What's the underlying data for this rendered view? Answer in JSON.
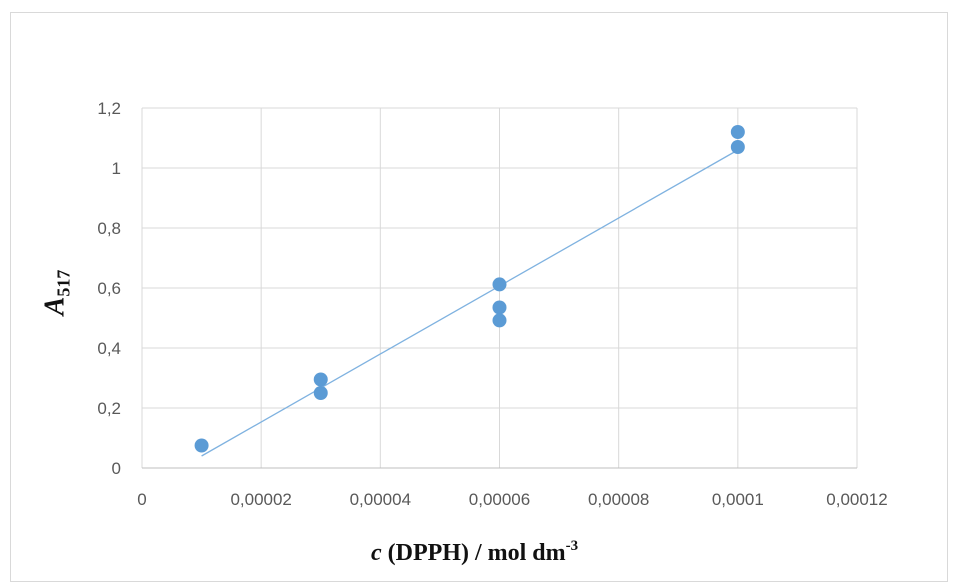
{
  "chart_data": {
    "type": "scatter",
    "title": "",
    "xlabel": {
      "var": "c",
      "rest": " (DPPH) / mol dm",
      "sup": "-3"
    },
    "ylabel": {
      "var": "A",
      "sub": "517"
    },
    "xlim": [
      0,
      0.00012
    ],
    "ylim": [
      0,
      1.2
    ],
    "x_ticks": [
      0,
      2e-05,
      4e-05,
      6e-05,
      8e-05,
      0.0001,
      0.00012
    ],
    "x_tick_labels": [
      "0",
      "0,00002",
      "0,00004",
      "0,00006",
      "0,00008",
      "0,0001",
      "0,00012"
    ],
    "y_ticks": [
      0,
      0.2,
      0.4,
      0.6,
      0.8,
      1.0,
      1.2
    ],
    "y_tick_labels": [
      "0",
      "0,2",
      "0,4",
      "0,6",
      "0,8",
      "1",
      "1,2"
    ],
    "grid": true,
    "series": [
      {
        "marker_color": "#5b9bd5",
        "points": [
          {
            "x": 1e-05,
            "y": 0.075
          },
          {
            "x": 3e-05,
            "y": 0.295
          },
          {
            "x": 3e-05,
            "y": 0.25
          },
          {
            "x": 6e-05,
            "y": 0.612
          },
          {
            "x": 6e-05,
            "y": 0.535
          },
          {
            "x": 6e-05,
            "y": 0.492
          },
          {
            "x": 0.0001,
            "y": 1.12
          },
          {
            "x": 0.0001,
            "y": 1.07
          }
        ]
      }
    ],
    "trendline": {
      "type": "linear",
      "color": "#7fb2e0",
      "x": [
        1e-05,
        0.0001
      ],
      "y": [
        0.04,
        1.06
      ]
    }
  }
}
